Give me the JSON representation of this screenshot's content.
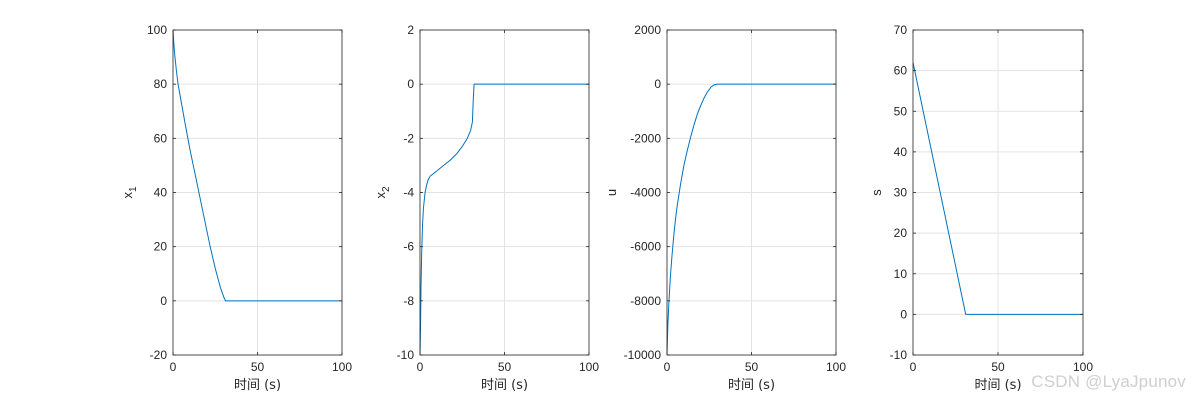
{
  "watermark": "CSDN @LyaJpunov",
  "chart_data": [
    {
      "type": "line",
      "xlabel": "时间 (s)",
      "ylabel": "x",
      "ylabel_sub": "1",
      "xlim": [
        0,
        100
      ],
      "ylim": [
        -20,
        100
      ],
      "xticks": [
        0,
        50,
        100
      ],
      "yticks": [
        -20,
        0,
        20,
        40,
        60,
        80,
        100
      ],
      "grid": true,
      "color": "#0072BD",
      "x": [
        0,
        0.5,
        1,
        2,
        3,
        5,
        7,
        10,
        13,
        16,
        19,
        22,
        25,
        28,
        30,
        31,
        32,
        40,
        60,
        80,
        100
      ],
      "y": [
        100,
        95,
        91,
        85,
        80,
        73,
        66,
        56,
        47,
        38,
        29,
        20,
        12,
        5,
        1.5,
        0,
        0,
        0,
        0,
        0,
        0
      ]
    },
    {
      "type": "line",
      "xlabel": "时间 (s)",
      "ylabel": "x",
      "ylabel_sub": "2",
      "xlim": [
        0,
        100
      ],
      "ylim": [
        -10,
        2
      ],
      "xticks": [
        0,
        50,
        100
      ],
      "yticks": [
        -10,
        -8,
        -6,
        -4,
        -2,
        0,
        2
      ],
      "grid": true,
      "color": "#0072BD",
      "x": [
        0,
        0.3,
        0.6,
        1,
        1.5,
        2,
        3,
        4,
        5,
        6,
        8,
        10,
        14,
        18,
        22,
        25,
        28,
        30,
        31,
        31.5,
        32,
        33,
        40,
        60,
        80,
        100
      ],
      "y": [
        -10,
        -9,
        -7.5,
        -6.2,
        -5.2,
        -4.6,
        -4.0,
        -3.7,
        -3.5,
        -3.4,
        -3.3,
        -3.2,
        -3.0,
        -2.8,
        -2.55,
        -2.3,
        -2.0,
        -1.7,
        -1.4,
        -0.6,
        0,
        0,
        0,
        0,
        0,
        0
      ]
    },
    {
      "type": "line",
      "xlabel": "时间 (s)",
      "ylabel": "u",
      "ylabel_sub": "",
      "xlim": [
        0,
        100
      ],
      "ylim": [
        -10000,
        2000
      ],
      "xticks": [
        0,
        50,
        100
      ],
      "yticks": [
        -10000,
        -8000,
        -6000,
        -4000,
        -2000,
        0,
        2000
      ],
      "grid": true,
      "color": "#0072BD",
      "x": [
        0,
        0.5,
        1,
        2,
        3,
        4,
        5,
        6,
        8,
        10,
        12,
        14,
        16,
        18,
        20,
        22,
        24,
        26,
        28,
        30,
        32,
        40,
        60,
        80,
        100
      ],
      "y": [
        -10000,
        -8900,
        -8200,
        -7100,
        -6300,
        -5600,
        -5000,
        -4500,
        -3700,
        -3000,
        -2450,
        -1950,
        -1500,
        -1100,
        -780,
        -500,
        -280,
        -110,
        -20,
        0,
        0,
        0,
        0,
        0,
        0
      ]
    },
    {
      "type": "line",
      "xlabel": "时间 (s)",
      "ylabel": "s",
      "ylabel_sub": "",
      "xlim": [
        0,
        100
      ],
      "ylim": [
        -10,
        70
      ],
      "xticks": [
        0,
        50,
        100
      ],
      "yticks": [
        -10,
        0,
        10,
        20,
        30,
        40,
        50,
        60,
        70
      ],
      "grid": true,
      "color": "#0072BD",
      "x": [
        0,
        31,
        40,
        60,
        80,
        100
      ],
      "y": [
        62,
        0,
        0,
        0,
        0,
        0
      ]
    }
  ]
}
